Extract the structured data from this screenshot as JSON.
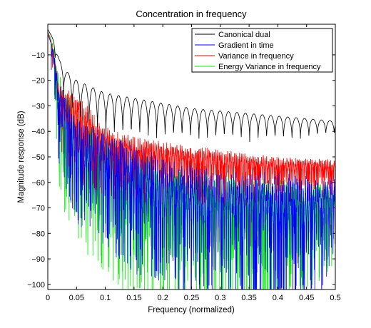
{
  "chart_data": {
    "type": "line",
    "title": "Concentration in frequency",
    "xlabel": "Frequency (normalized)",
    "ylabel": "Magnitude response (dB)",
    "xlim": [
      0,
      0.5
    ],
    "ylim": [
      -102,
      2
    ],
    "x_ticks": [
      0,
      0.05,
      0.1,
      0.15,
      0.2,
      0.25,
      0.3,
      0.35,
      0.4,
      0.45,
      0.5
    ],
    "x_tick_labels": [
      "0",
      "0.05",
      "0.1",
      "0.15",
      "0.2",
      "0.25",
      "0.3",
      "0.35",
      "0.4",
      "0.45",
      "0.5"
    ],
    "y_ticks": [
      -100,
      -90,
      -80,
      -70,
      -60,
      -50,
      -40,
      -30,
      -20,
      -10
    ],
    "y_tick_labels": [
      "−100",
      "−90",
      "−80",
      "−70",
      "−60",
      "−50",
      "−40",
      "−30",
      "−20",
      "−10"
    ],
    "grid": false,
    "legend_position": "top-right",
    "series": [
      {
        "name": "Canonical dual",
        "color": "#000000",
        "envelope_x": [
          0,
          0.01,
          0.02,
          0.03,
          0.05,
          0.08,
          0.1,
          0.15,
          0.2,
          0.25,
          0.3,
          0.35,
          0.4,
          0.45,
          0.5
        ],
        "envelope_peak": [
          0,
          -4,
          -12,
          -16,
          -20,
          -23,
          -25,
          -27,
          -29,
          -31,
          -32,
          -33,
          -34,
          -35,
          -36
        ],
        "envelope_trough": [
          -1,
          -8,
          -22,
          -28,
          -40,
          -42,
          -44,
          -45,
          -45,
          -45,
          -45,
          -45,
          -45,
          -44,
          -42
        ],
        "lobes": 34
      },
      {
        "name": "Gradient in time",
        "color": "#0000ff",
        "envelope_x": [
          0,
          0.01,
          0.02,
          0.05,
          0.1,
          0.15,
          0.2,
          0.3,
          0.4,
          0.5
        ],
        "envelope_peak": [
          -2,
          -8,
          -20,
          -35,
          -40,
          -45,
          -50,
          -55,
          -56,
          -58
        ],
        "envelope_trough": [
          -3,
          -15,
          -50,
          -70,
          -80,
          -90,
          -95,
          -100,
          -101,
          -95
        ],
        "lobes": 140
      },
      {
        "name": "Variance in frequency",
        "color": "#ff0000",
        "envelope_x": [
          0,
          0.01,
          0.02,
          0.05,
          0.1,
          0.15,
          0.2,
          0.3,
          0.4,
          0.5
        ],
        "envelope_peak": [
          -1,
          -8,
          -22,
          -25,
          -38,
          -42,
          -44,
          -47,
          -50,
          -51
        ],
        "envelope_trough": [
          -2,
          -12,
          -40,
          -55,
          -60,
          -62,
          -63,
          -64,
          -63,
          -62
        ],
        "lobes": 170
      },
      {
        "name": "Energy Variance in frequency",
        "color": "#00ee00",
        "envelope_x": [
          0,
          0.01,
          0.02,
          0.05,
          0.1,
          0.15,
          0.2,
          0.3,
          0.4,
          0.5
        ],
        "envelope_peak": [
          -1,
          -6,
          -18,
          -30,
          -40,
          -45,
          -52,
          -56,
          -58,
          -60
        ],
        "envelope_trough": [
          -3,
          -15,
          -60,
          -80,
          -90,
          -101,
          -101,
          -101,
          -101,
          -90
        ],
        "lobes": 150
      }
    ]
  }
}
